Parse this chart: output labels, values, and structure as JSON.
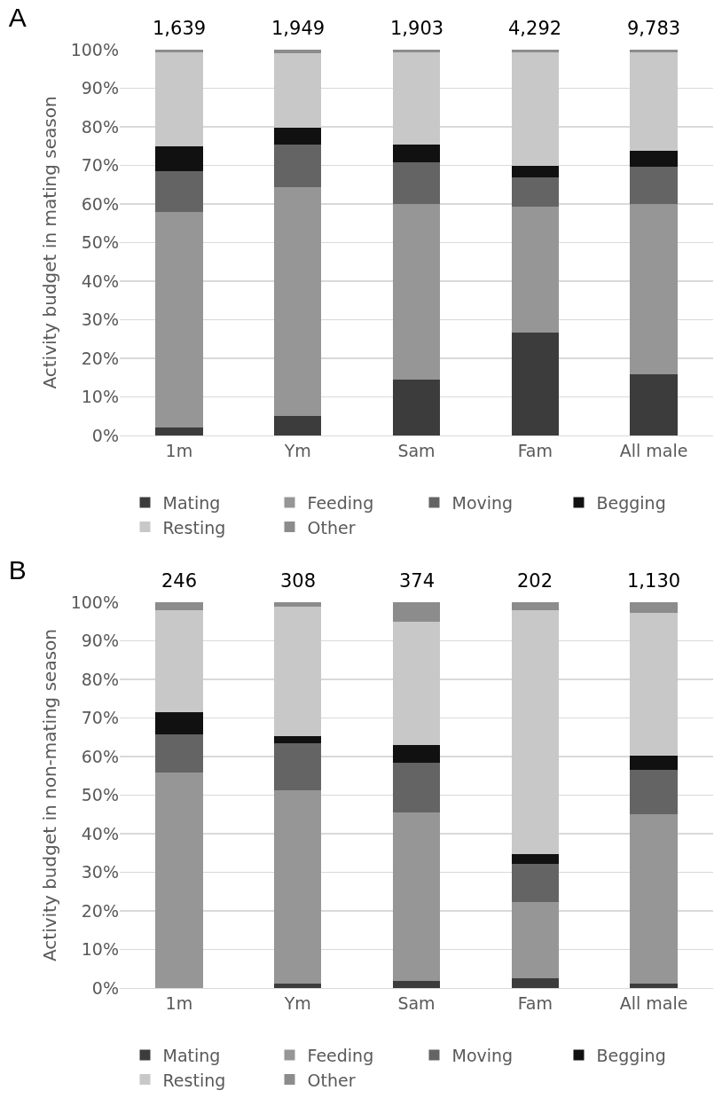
{
  "chart_data": [
    {
      "type": "bar",
      "title": "A",
      "ylabel": "Activity budget in mating season",
      "categories": [
        "1m",
        "Ym",
        "Sam",
        "Fam",
        "All male"
      ],
      "stacked": true,
      "series": [
        {
          "name": "Mating",
          "color": "#3c3c3c",
          "values": [
            2,
            5,
            14.5,
            26.7,
            15.8
          ]
        },
        {
          "name": "Feeding",
          "color": "#969696",
          "values": [
            56,
            59.3,
            45.5,
            32.6,
            44.2
          ]
        },
        {
          "name": "Moving",
          "color": "#646464",
          "values": [
            10.5,
            11,
            10.7,
            7.7,
            9.7
          ]
        },
        {
          "name": "Begging",
          "color": "#111111",
          "values": [
            6.5,
            4.5,
            4.8,
            2.8,
            4.1
          ]
        },
        {
          "name": "Resting",
          "color": "#c8c8c8",
          "values": [
            24.2,
            19.2,
            23.7,
            29.4,
            25.4
          ]
        },
        {
          "name": "Other",
          "color": "#8c8c8c",
          "values": [
            0.8,
            1,
            0.8,
            0.8,
            0.8
          ]
        }
      ],
      "annotations": [
        {
          "text": "1,639",
          "x": "1m",
          "y": 100
        },
        {
          "text": "1,949",
          "x": "Ym",
          "y": 100
        },
        {
          "text": "1,903",
          "x": "Sam",
          "y": 100
        },
        {
          "text": "4,292",
          "x": "Fam",
          "y": 100
        },
        {
          "text": "9,783",
          "x": "All male",
          "y": 100
        }
      ],
      "ylim": [
        0,
        100
      ],
      "yticks": [
        {
          "value": 0,
          "label": "0%"
        },
        {
          "value": 10,
          "label": "10%"
        },
        {
          "value": 20,
          "label": "20%"
        },
        {
          "value": 30,
          "label": "30%"
        },
        {
          "value": 40,
          "label": "40%"
        },
        {
          "value": 50,
          "label": "50%"
        },
        {
          "value": 60,
          "label": "60%"
        },
        {
          "value": 70,
          "label": "70%"
        },
        {
          "value": 80,
          "label": "80%"
        },
        {
          "value": 90,
          "label": "90%"
        },
        {
          "value": 100,
          "label": "100%"
        }
      ],
      "grid": "y",
      "legend": "bottom"
    },
    {
      "type": "bar",
      "title": "B",
      "ylabel": "Activity budget in non-mating season",
      "categories": [
        "1m",
        "Ym",
        "Sam",
        "Fam",
        "All male"
      ],
      "stacked": true,
      "series": [
        {
          "name": "Mating",
          "color": "#3c3c3c",
          "values": [
            0,
            1.2,
            1.8,
            2.5,
            1.2
          ]
        },
        {
          "name": "Feeding",
          "color": "#969696",
          "values": [
            55.8,
            50,
            43.7,
            19.8,
            43.9
          ]
        },
        {
          "name": "Moving",
          "color": "#646464",
          "values": [
            9.9,
            12.3,
            12.9,
            10,
            11.5
          ]
        },
        {
          "name": "Begging",
          "color": "#111111",
          "values": [
            5.9,
            1.8,
            4.5,
            2.5,
            3.7
          ]
        },
        {
          "name": "Resting",
          "color": "#c8c8c8",
          "values": [
            26.4,
            33.6,
            32.1,
            63.2,
            36.9
          ]
        },
        {
          "name": "Other",
          "color": "#8c8c8c",
          "values": [
            2,
            1.1,
            5,
            2,
            2.8
          ]
        }
      ],
      "annotations": [
        {
          "text": "246",
          "x": "1m",
          "y": 100
        },
        {
          "text": "308",
          "x": "Ym",
          "y": 100
        },
        {
          "text": "374",
          "x": "Sam",
          "y": 100
        },
        {
          "text": "202",
          "x": "Fam",
          "y": 100
        },
        {
          "text": "1,130",
          "x": "All male",
          "y": 100
        }
      ],
      "ylim": [
        0,
        100
      ],
      "yticks": [
        {
          "value": 0,
          "label": "0%"
        },
        {
          "value": 10,
          "label": "10%"
        },
        {
          "value": 20,
          "label": "20%"
        },
        {
          "value": 30,
          "label": "30%"
        },
        {
          "value": 40,
          "label": "40%"
        },
        {
          "value": 50,
          "label": "50%"
        },
        {
          "value": 60,
          "label": "60%"
        },
        {
          "value": 70,
          "label": "70%"
        },
        {
          "value": 80,
          "label": "80%"
        },
        {
          "value": 90,
          "label": "90%"
        },
        {
          "value": 100,
          "label": "100%"
        }
      ],
      "grid": "y",
      "legend": "bottom"
    }
  ]
}
